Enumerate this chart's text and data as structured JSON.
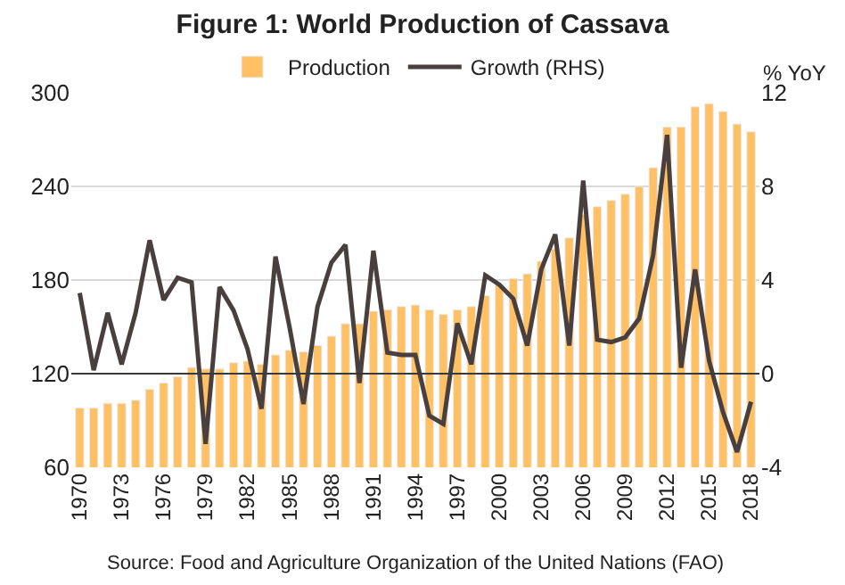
{
  "chart_data": {
    "type": "bar",
    "title": "Figure 1: World Production of Cassava",
    "y2label": "% YoY",
    "categories": [
      "1970",
      null,
      null,
      "1973",
      null,
      null,
      "1976",
      null,
      null,
      "1979",
      null,
      null,
      "1982",
      null,
      null,
      "1985",
      null,
      null,
      "1988",
      null,
      null,
      "1991",
      null,
      null,
      "1994",
      null,
      null,
      "1997",
      null,
      null,
      "2000",
      null,
      null,
      "2003",
      null,
      null,
      "2006",
      null,
      null,
      "2009",
      null,
      null,
      "2012",
      null,
      null,
      "2015",
      null,
      null,
      "2018"
    ],
    "series": [
      {
        "name": "Production",
        "color": "#ffc164",
        "values": [
          98,
          98,
          101,
          101,
          103,
          110,
          114,
          118,
          124,
          123,
          123,
          127,
          128,
          126,
          132,
          135,
          134,
          138,
          144,
          152,
          152,
          160,
          161,
          163,
          164,
          161,
          158,
          161,
          163,
          170,
          177,
          181,
          184,
          192,
          200,
          207,
          222,
          227,
          231,
          235,
          240,
          252,
          278,
          278,
          291,
          293,
          288,
          280,
          275
        ]
      },
      {
        "name": "Growth (RHS)",
        "type": "line",
        "axis": "y2",
        "color": "#4a3f3f",
        "values": [
          3.45,
          0.15,
          2.6,
          0.4,
          2.6,
          5.7,
          3.15,
          4.1,
          3.9,
          -3.0,
          3.7,
          2.7,
          1.05,
          -1.5,
          5.0,
          2.0,
          -1.3,
          2.85,
          4.75,
          5.5,
          -0.4,
          5.25,
          0.9,
          0.8,
          0.8,
          -1.8,
          -2.15,
          2.15,
          0.4,
          4.2,
          3.8,
          3.2,
          1.2,
          4.45,
          5.95,
          1.2,
          8.25,
          1.45,
          1.35,
          1.55,
          2.35,
          5.05,
          10.2,
          0.25,
          4.45,
          0.55,
          -1.65,
          -3.35,
          -1.2
        ]
      }
    ],
    "ylim": [
      60,
      300
    ],
    "yticks": [
      60,
      120,
      180,
      240,
      300
    ],
    "y2lim": [
      -4,
      12
    ],
    "y2ticks": [
      -4,
      0,
      4,
      8,
      12
    ],
    "ref_lines": [
      {
        "axis": "y2",
        "value": 0,
        "color": "#3a3a3a"
      }
    ],
    "grid": "y",
    "legend": "top",
    "marker": "none",
    "line_style": "solid",
    "annotations": [
      "Source: Food and Agriculture Organization of the United Nations (FAO)"
    ]
  }
}
